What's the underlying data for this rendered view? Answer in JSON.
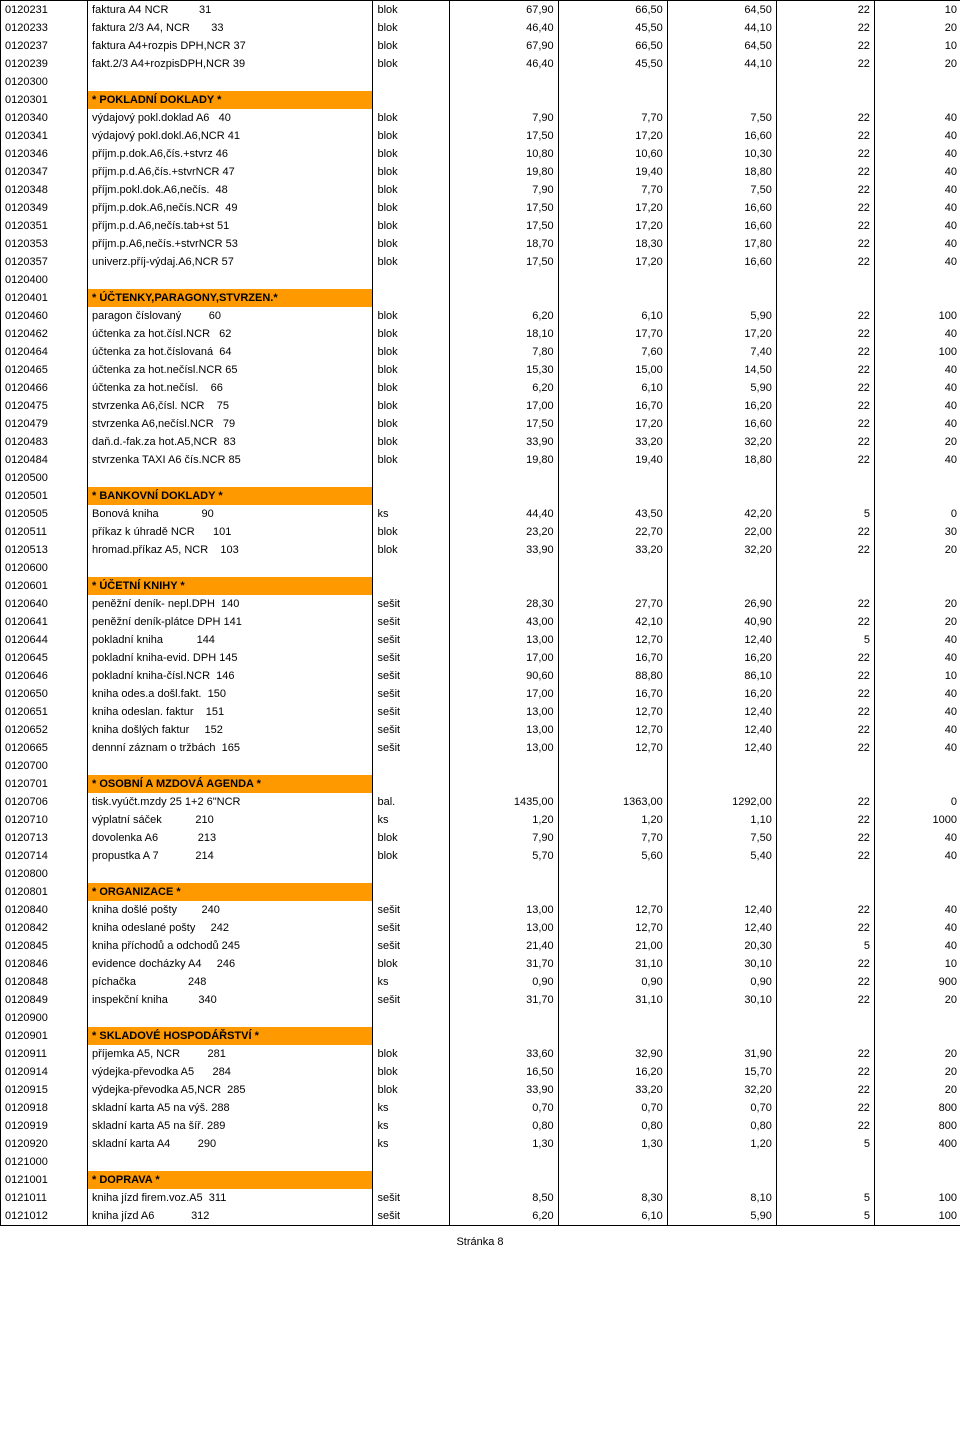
{
  "footer": "Stránka 8",
  "rows": [
    {
      "c0": "0120231",
      "c1": "faktura A4 NCR          31",
      "c2": "blok",
      "c3": "67,90",
      "c4": "66,50",
      "c5": "64,50",
      "c6": "22",
      "c7": "10"
    },
    {
      "c0": "0120233",
      "c1": "faktura 2/3 A4, NCR       33",
      "c2": "blok",
      "c3": "46,40",
      "c4": "45,50",
      "c5": "44,10",
      "c6": "22",
      "c7": "20"
    },
    {
      "c0": "0120237",
      "c1": "faktura A4+rozpis DPH,NCR 37",
      "c2": "blok",
      "c3": "67,90",
      "c4": "66,50",
      "c5": "64,50",
      "c6": "22",
      "c7": "10"
    },
    {
      "c0": "0120239",
      "c1": "fakt.2/3 A4+rozpisDPH,NCR 39",
      "c2": "blok",
      "c3": "46,40",
      "c4": "45,50",
      "c5": "44,10",
      "c6": "22",
      "c7": "20"
    },
    {
      "c0": "0120300",
      "empty": true
    },
    {
      "c0": "0120301",
      "c1": "* POKLADNÍ DOKLADY *",
      "section": true
    },
    {
      "c0": "0120340",
      "c1": "výdajový pokl.doklad A6   40",
      "c2": "blok",
      "c3": "7,90",
      "c4": "7,70",
      "c5": "7,50",
      "c6": "22",
      "c7": "40"
    },
    {
      "c0": "0120341",
      "c1": "výdajový pokl.dokl.A6,NCR 41",
      "c2": "blok",
      "c3": "17,50",
      "c4": "17,20",
      "c5": "16,60",
      "c6": "22",
      "c7": "40"
    },
    {
      "c0": "0120346",
      "c1": "příjm.p.dok.A6,čís.+stvrz 46",
      "c2": "blok",
      "c3": "10,80",
      "c4": "10,60",
      "c5": "10,30",
      "c6": "22",
      "c7": "40"
    },
    {
      "c0": "0120347",
      "c1": "příjm.p.d.A6,čís.+stvrNCR 47",
      "c2": "blok",
      "c3": "19,80",
      "c4": "19,40",
      "c5": "18,80",
      "c6": "22",
      "c7": "40"
    },
    {
      "c0": "0120348",
      "c1": "příjm.pokl.dok.A6,nečís.  48",
      "c2": "blok",
      "c3": "7,90",
      "c4": "7,70",
      "c5": "7,50",
      "c6": "22",
      "c7": "40"
    },
    {
      "c0": "0120349",
      "c1": "příjm.p.dok.A6,nečís.NCR  49",
      "c2": "blok",
      "c3": "17,50",
      "c4": "17,20",
      "c5": "16,60",
      "c6": "22",
      "c7": "40"
    },
    {
      "c0": "0120351",
      "c1": "příjm.p.d.A6,nečís.tab+st 51",
      "c2": "blok",
      "c3": "17,50",
      "c4": "17,20",
      "c5": "16,60",
      "c6": "22",
      "c7": "40"
    },
    {
      "c0": "0120353",
      "c1": "příjm.p.A6,nečís.+stvrNCR 53",
      "c2": "blok",
      "c3": "18,70",
      "c4": "18,30",
      "c5": "17,80",
      "c6": "22",
      "c7": "40"
    },
    {
      "c0": "0120357",
      "c1": "univerz.příj-výdaj.A6,NCR 57",
      "c2": "blok",
      "c3": "17,50",
      "c4": "17,20",
      "c5": "16,60",
      "c6": "22",
      "c7": "40"
    },
    {
      "c0": "0120400",
      "empty": true
    },
    {
      "c0": "0120401",
      "c1": "* ÚČTENKY,PARAGONY,STVRZEN.*",
      "section": true
    },
    {
      "c0": "0120460",
      "c1": "paragon číslovaný         60",
      "c2": "blok",
      "c3": "6,20",
      "c4": "6,10",
      "c5": "5,90",
      "c6": "22",
      "c7": "100"
    },
    {
      "c0": "0120462",
      "c1": "účtenka za hot.čísl.NCR   62",
      "c2": "blok",
      "c3": "18,10",
      "c4": "17,70",
      "c5": "17,20",
      "c6": "22",
      "c7": "40"
    },
    {
      "c0": "0120464",
      "c1": "účtenka za hot.číslovaná  64",
      "c2": "blok",
      "c3": "7,80",
      "c4": "7,60",
      "c5": "7,40",
      "c6": "22",
      "c7": "100"
    },
    {
      "c0": "0120465",
      "c1": "účtenka za hot.nečísl.NCR 65",
      "c2": "blok",
      "c3": "15,30",
      "c4": "15,00",
      "c5": "14,50",
      "c6": "22",
      "c7": "40"
    },
    {
      "c0": "0120466",
      "c1": "účtenka za hot.nečísl.    66",
      "c2": "blok",
      "c3": "6,20",
      "c4": "6,10",
      "c5": "5,90",
      "c6": "22",
      "c7": "40"
    },
    {
      "c0": "0120475",
      "c1": "stvrzenka A6,čísl. NCR    75",
      "c2": "blok",
      "c3": "17,00",
      "c4": "16,70",
      "c5": "16,20",
      "c6": "22",
      "c7": "40"
    },
    {
      "c0": "0120479",
      "c1": "stvrzenka A6,nečísl.NCR   79",
      "c2": "blok",
      "c3": "17,50",
      "c4": "17,20",
      "c5": "16,60",
      "c6": "22",
      "c7": "40"
    },
    {
      "c0": "0120483",
      "c1": "daň.d.-fak.za hot.A5,NCR  83",
      "c2": "blok",
      "c3": "33,90",
      "c4": "33,20",
      "c5": "32,20",
      "c6": "22",
      "c7": "20"
    },
    {
      "c0": "0120484",
      "c1": "stvrzenka TAXI A6 čís.NCR 85",
      "c2": "blok",
      "c3": "19,80",
      "c4": "19,40",
      "c5": "18,80",
      "c6": "22",
      "c7": "40"
    },
    {
      "c0": "0120500",
      "empty": true
    },
    {
      "c0": "0120501",
      "c1": "* BANKOVNÍ DOKLADY *",
      "section": true
    },
    {
      "c0": "0120505",
      "c1": "Bonová kniha              90",
      "c2": "ks",
      "c3": "44,40",
      "c4": "43,50",
      "c5": "42,20",
      "c6": "5",
      "c7": "0"
    },
    {
      "c0": "0120511",
      "c1": "příkaz k úhradě NCR      101",
      "c2": "blok",
      "c3": "23,20",
      "c4": "22,70",
      "c5": "22,00",
      "c6": "22",
      "c7": "30"
    },
    {
      "c0": "0120513",
      "c1": "hromad.příkaz A5, NCR    103",
      "c2": "blok",
      "c3": "33,90",
      "c4": "33,20",
      "c5": "32,20",
      "c6": "22",
      "c7": "20"
    },
    {
      "c0": "0120600",
      "empty": true
    },
    {
      "c0": "0120601",
      "c1": "* ÚČETNÍ KNIHY *",
      "section": true
    },
    {
      "c0": "0120640",
      "c1": "peněžní deník- nepl.DPH  140",
      "c2": "sešit",
      "c3": "28,30",
      "c4": "27,70",
      "c5": "26,90",
      "c6": "22",
      "c7": "20"
    },
    {
      "c0": "0120641",
      "c1": "peněžní deník-plátce DPH 141",
      "c2": "sešit",
      "c3": "43,00",
      "c4": "42,10",
      "c5": "40,90",
      "c6": "22",
      "c7": "20"
    },
    {
      "c0": "0120644",
      "c1": "pokladní kniha           144",
      "c2": "sešit",
      "c3": "13,00",
      "c4": "12,70",
      "c5": "12,40",
      "c6": "5",
      "c7": "40"
    },
    {
      "c0": "0120645",
      "c1": "pokladní kniha-evid. DPH 145",
      "c2": "sešit",
      "c3": "17,00",
      "c4": "16,70",
      "c5": "16,20",
      "c6": "22",
      "c7": "40"
    },
    {
      "c0": "0120646",
      "c1": "pokladní kniha-čísl.NCR  146",
      "c2": "sešit",
      "c3": "90,60",
      "c4": "88,80",
      "c5": "86,10",
      "c6": "22",
      "c7": "10"
    },
    {
      "c0": "0120650",
      "c1": "kniha odes.a došl.fakt.  150",
      "c2": "sešit",
      "c3": "17,00",
      "c4": "16,70",
      "c5": "16,20",
      "c6": "22",
      "c7": "40"
    },
    {
      "c0": "0120651",
      "c1": "kniha odeslan. faktur    151",
      "c2": "sešit",
      "c3": "13,00",
      "c4": "12,70",
      "c5": "12,40",
      "c6": "22",
      "c7": "40"
    },
    {
      "c0": "0120652",
      "c1": "kniha došlých faktur     152",
      "c2": "sešit",
      "c3": "13,00",
      "c4": "12,70",
      "c5": "12,40",
      "c6": "22",
      "c7": "40"
    },
    {
      "c0": "0120665",
      "c1": "dennní záznam o tržbách  165",
      "c2": "sešit",
      "c3": "13,00",
      "c4": "12,70",
      "c5": "12,40",
      "c6": "22",
      "c7": "40"
    },
    {
      "c0": "0120700",
      "empty": true
    },
    {
      "c0": "0120701",
      "c1": "* OSOBNÍ A MZDOVÁ AGENDA *",
      "section": true
    },
    {
      "c0": "0120706",
      "c1": "tisk.vyúčt.mzdy 25 1+2 6\"NCR",
      "c2": "bal.",
      "c3": "1435,00",
      "c4": "1363,00",
      "c5": "1292,00",
      "c6": "22",
      "c7": "0"
    },
    {
      "c0": "0120710",
      "c1": "výplatní sáček           210",
      "c2": "ks",
      "c3": "1,20",
      "c4": "1,20",
      "c5": "1,10",
      "c6": "22",
      "c7": "1000"
    },
    {
      "c0": "0120713",
      "c1": "dovolenka A6             213",
      "c2": "blok",
      "c3": "7,90",
      "c4": "7,70",
      "c5": "7,50",
      "c6": "22",
      "c7": "40"
    },
    {
      "c0": "0120714",
      "c1": "propustka A 7            214",
      "c2": "blok",
      "c3": "5,70",
      "c4": "5,60",
      "c5": "5,40",
      "c6": "22",
      "c7": "40"
    },
    {
      "c0": "0120800",
      "empty": true
    },
    {
      "c0": "0120801",
      "c1": "* ORGANIZACE *",
      "section": true
    },
    {
      "c0": "0120840",
      "c1": "kniha došlé pošty        240",
      "c2": "sešit",
      "c3": "13,00",
      "c4": "12,70",
      "c5": "12,40",
      "c6": "22",
      "c7": "40"
    },
    {
      "c0": "0120842",
      "c1": "kniha odeslané pošty     242",
      "c2": "sešit",
      "c3": "13,00",
      "c4": "12,70",
      "c5": "12,40",
      "c6": "22",
      "c7": "40"
    },
    {
      "c0": "0120845",
      "c1": "kniha příchodů a odchodů 245",
      "c2": "sešit",
      "c3": "21,40",
      "c4": "21,00",
      "c5": "20,30",
      "c6": "5",
      "c7": "40"
    },
    {
      "c0": "0120846",
      "c1": "evidence docházky A4     246",
      "c2": "blok",
      "c3": "31,70",
      "c4": "31,10",
      "c5": "30,10",
      "c6": "22",
      "c7": "10"
    },
    {
      "c0": "0120848",
      "c1": "píchačka                 248",
      "c2": "ks",
      "c3": "0,90",
      "c4": "0,90",
      "c5": "0,90",
      "c6": "22",
      "c7": "900"
    },
    {
      "c0": "0120849",
      "c1": "inspekční kniha          340",
      "c2": "sešit",
      "c3": "31,70",
      "c4": "31,10",
      "c5": "30,10",
      "c6": "22",
      "c7": "20"
    },
    {
      "c0": "0120900",
      "empty": true
    },
    {
      "c0": "0120901",
      "c1": "* SKLADOVÉ HOSPODÁŘSTVÍ *",
      "section": true
    },
    {
      "c0": "0120911",
      "c1": "příjemka A5, NCR         281",
      "c2": "blok",
      "c3": "33,60",
      "c4": "32,90",
      "c5": "31,90",
      "c6": "22",
      "c7": "20"
    },
    {
      "c0": "0120914",
      "c1": "výdejka-převodka A5      284",
      "c2": "blok",
      "c3": "16,50",
      "c4": "16,20",
      "c5": "15,70",
      "c6": "22",
      "c7": "20"
    },
    {
      "c0": "0120915",
      "c1": "výdejka-převodka A5,NCR  285",
      "c2": "blok",
      "c3": "33,90",
      "c4": "33,20",
      "c5": "32,20",
      "c6": "22",
      "c7": "20"
    },
    {
      "c0": "0120918",
      "c1": "skladní karta A5 na výš. 288",
      "c2": "ks",
      "c3": "0,70",
      "c4": "0,70",
      "c5": "0,70",
      "c6": "22",
      "c7": "800"
    },
    {
      "c0": "0120919",
      "c1": "skladní karta A5 na šíř. 289",
      "c2": "ks",
      "c3": "0,80",
      "c4": "0,80",
      "c5": "0,80",
      "c6": "22",
      "c7": "800"
    },
    {
      "c0": "0120920",
      "c1": "skladní karta A4         290",
      "c2": "ks",
      "c3": "1,30",
      "c4": "1,30",
      "c5": "1,20",
      "c6": "5",
      "c7": "400"
    },
    {
      "c0": "0121000",
      "empty": true
    },
    {
      "c0": "0121001",
      "c1": "* DOPRAVA *",
      "section": true
    },
    {
      "c0": "0121011",
      "c1": "kniha jízd firem.voz.A5  311",
      "c2": "sešit",
      "c3": "8,50",
      "c4": "8,30",
      "c5": "8,10",
      "c6": "5",
      "c7": "100"
    },
    {
      "c0": "0121012",
      "c1": "kniha jízd A6            312",
      "c2": "sešit",
      "c3": "6,20",
      "c4": "6,10",
      "c5": "5,90",
      "c6": "5",
      "c7": "100"
    }
  ]
}
